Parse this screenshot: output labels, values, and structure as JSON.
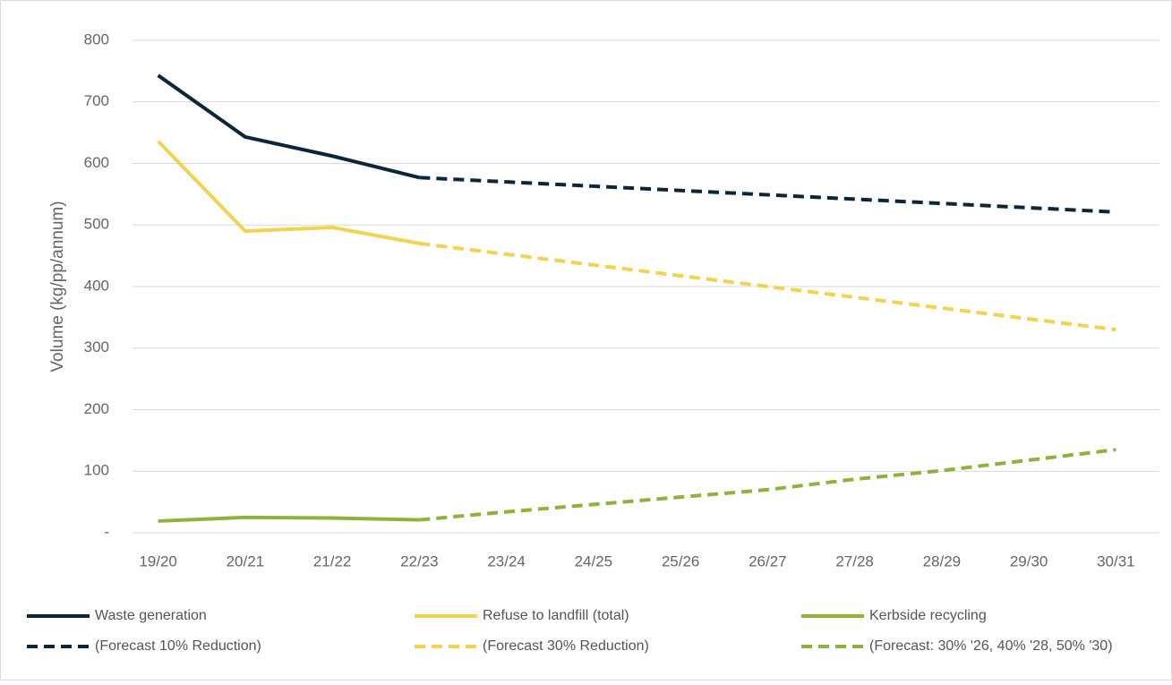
{
  "chart_data": {
    "type": "line",
    "y_label": "Volume (kg/pp/annum)",
    "categories": [
      "19/20",
      "20/21",
      "21/22",
      "22/23",
      "23/24",
      "24/25",
      "25/26",
      "26/27",
      "27/28",
      "28/29",
      "29/30",
      "30/31"
    ],
    "series": [
      {
        "name": "Waste generation",
        "color": "#0d2538",
        "dashed": false,
        "values": [
          743,
          643,
          612,
          577,
          null,
          null,
          null,
          null,
          null,
          null,
          null,
          null
        ]
      },
      {
        "name": "Refuse to landfill (total)",
        "color": "#f2d34f",
        "dashed": false,
        "values": [
          636,
          490,
          496,
          470,
          null,
          null,
          null,
          null,
          null,
          null,
          null,
          null
        ]
      },
      {
        "name": "Kerbside recycling",
        "color": "#8fb33a",
        "dashed": false,
        "values": [
          19,
          25,
          24,
          21,
          null,
          null,
          null,
          null,
          null,
          null,
          null,
          null
        ]
      },
      {
        "name": "(Forecast 10% Reduction)",
        "color": "#0d2538",
        "dashed": true,
        "values": [
          null,
          null,
          null,
          577,
          570,
          563,
          556,
          549,
          542,
          535,
          528,
          521
        ]
      },
      {
        "name": "(Forecast 30% Reduction)",
        "color": "#f2d34f",
        "dashed": true,
        "values": [
          null,
          null,
          null,
          470,
          452.5,
          435,
          417.5,
          400,
          382.5,
          365,
          347.5,
          330
        ]
      },
      {
        "name": "(Forecast: 30% '26, 40% '28, 50% '30)",
        "color": "#8fb33a",
        "dashed": true,
        "values": [
          null,
          null,
          null,
          21,
          34,
          46,
          58,
          70,
          87,
          101,
          118,
          135
        ]
      }
    ],
    "ylim": [
      0,
      800
    ],
    "yticks": [
      {
        "value": 0,
        "label": "-"
      },
      100,
      200,
      300,
      400,
      500,
      600,
      700,
      800
    ],
    "grid": true,
    "legend": "bottom"
  }
}
